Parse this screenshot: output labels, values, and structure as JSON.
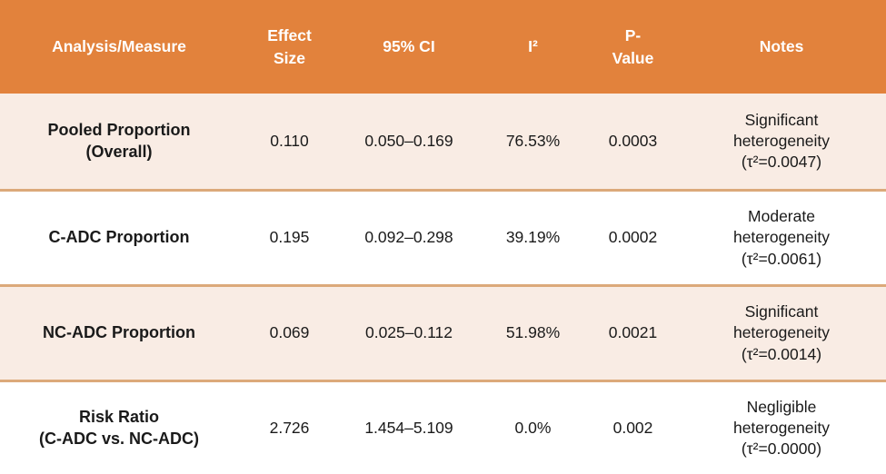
{
  "display": {
    "header": {
      "analysis": "Analysis/Measure",
      "effect": "Effect\nSize",
      "ci": "95% CI",
      "i2": "I²",
      "p": "P-\nValue",
      "notes": "Notes"
    },
    "rows": [
      {
        "measure": "Pooled Proportion\n(Overall)",
        "effect": "0.110",
        "ci": "0.050–0.169",
        "i2": "76.53%",
        "p": "0.0003",
        "notes": "Significant\nheterogeneity\n(τ²=0.0047)"
      },
      {
        "measure": "C-ADC Proportion",
        "effect": "0.195",
        "ci": "0.092–0.298",
        "i2": "39.19%",
        "p": "0.0002",
        "notes": "Moderate\nheterogeneity\n(τ²=0.0061)"
      },
      {
        "measure": "NC-ADC Proportion",
        "effect": "0.069",
        "ci": "0.025–0.112",
        "i2": "51.98%",
        "p": "0.0021",
        "notes": "Significant\nheterogeneity\n(τ²=0.0014)"
      },
      {
        "measure": "Risk Ratio\n(C-ADC vs. NC-ADC)",
        "effect": "2.726",
        "ci": "1.454–5.109",
        "i2": "0.0%",
        "p": "0.002",
        "notes": "Negligible\nheterogeneity\n(τ²=0.0000)"
      }
    ]
  },
  "colors": {
    "header_bg": "#E2823C",
    "header_text": "#FFFFFF",
    "stripe_row_bg": "#F9ECE4",
    "plain_row_bg": "#FFFFFF",
    "row_divider": "#DCA97A",
    "body_text": "#1A1A1A"
  },
  "chart_data": {
    "type": "table",
    "title": "",
    "columns": [
      "Analysis/Measure",
      "Effect Size",
      "95% CI",
      "I²",
      "P-Value",
      "Notes"
    ],
    "rows": [
      [
        "Pooled Proportion (Overall)",
        "0.110",
        "0.050–0.169",
        "76.53%",
        "0.0003",
        "Significant heterogeneity (τ²=0.0047)"
      ],
      [
        "C-ADC Proportion",
        "0.195",
        "0.092–0.298",
        "39.19%",
        "0.0002",
        "Moderate heterogeneity (τ²=0.0061)"
      ],
      [
        "NC-ADC Proportion",
        "0.069",
        "0.025–0.112",
        "51.98%",
        "0.0021",
        "Significant heterogeneity (τ²=0.0014)"
      ],
      [
        "Risk Ratio (C-ADC vs. NC-ADC)",
        "2.726",
        "1.454–5.109",
        "0.0%",
        "0.002",
        "Negligible heterogeneity (τ²=0.0000)"
      ]
    ]
  }
}
